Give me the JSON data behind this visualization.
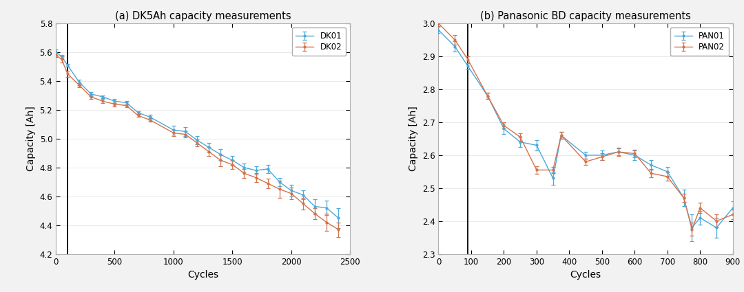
{
  "chart_a": {
    "title": "(a) DK5Ah capacity measurements",
    "xlabel": "Cycles",
    "ylabel": "Capacity [Ah]",
    "xlim": [
      0,
      2500
    ],
    "ylim": [
      4.2,
      5.8
    ],
    "xticks": [
      0,
      500,
      1000,
      1500,
      2000,
      2500
    ],
    "yticks": [
      4.2,
      4.4,
      4.6,
      4.8,
      5.0,
      5.2,
      5.4,
      5.6,
      5.8
    ],
    "vline_x": 100,
    "series": {
      "DK01": {
        "color": "#4CA8D8",
        "x": [
          0,
          50,
          100,
          200,
          300,
          400,
          500,
          600,
          700,
          800,
          1000,
          1100,
          1200,
          1300,
          1400,
          1500,
          1600,
          1700,
          1800,
          1900,
          2000,
          2100,
          2200,
          2300,
          2400
        ],
        "y": [
          5.6,
          5.57,
          5.51,
          5.39,
          5.31,
          5.29,
          5.26,
          5.25,
          5.18,
          5.15,
          5.06,
          5.05,
          4.99,
          4.94,
          4.89,
          4.85,
          4.8,
          4.78,
          4.79,
          4.7,
          4.64,
          4.61,
          4.53,
          4.52,
          4.45
        ],
        "yerr": [
          0.02,
          0.01,
          0.01,
          0.02,
          0.015,
          0.01,
          0.015,
          0.01,
          0.01,
          0.015,
          0.03,
          0.03,
          0.03,
          0.03,
          0.04,
          0.03,
          0.03,
          0.03,
          0.03,
          0.03,
          0.04,
          0.03,
          0.05,
          0.05,
          0.07
        ]
      },
      "DK02": {
        "color": "#D4724A",
        "x": [
          0,
          50,
          100,
          200,
          300,
          400,
          500,
          600,
          700,
          800,
          1000,
          1100,
          1200,
          1300,
          1400,
          1500,
          1600,
          1700,
          1800,
          1900,
          2000,
          2100,
          2200,
          2300,
          2400
        ],
        "y": [
          5.58,
          5.55,
          5.45,
          5.37,
          5.29,
          5.26,
          5.24,
          5.23,
          5.16,
          5.13,
          5.04,
          5.03,
          4.97,
          4.91,
          4.85,
          4.82,
          4.76,
          4.73,
          4.69,
          4.65,
          4.62,
          4.55,
          4.48,
          4.42,
          4.37
        ],
        "yerr": [
          0.015,
          0.02,
          0.02,
          0.015,
          0.015,
          0.015,
          0.015,
          0.01,
          0.01,
          0.01,
          0.02,
          0.02,
          0.025,
          0.03,
          0.04,
          0.03,
          0.03,
          0.03,
          0.035,
          0.06,
          0.04,
          0.04,
          0.04,
          0.06,
          0.05
        ]
      }
    }
  },
  "chart_b": {
    "title": "(b) Panasonic BD capacity measurements",
    "xlabel": "Cycles",
    "ylabel": "Capacity [Ah]",
    "xlim": [
      0,
      900
    ],
    "ylim": [
      2.3,
      3.0
    ],
    "xticks": [
      0,
      100,
      200,
      300,
      400,
      500,
      600,
      700,
      800,
      900
    ],
    "yticks": [
      2.3,
      2.4,
      2.5,
      2.6,
      2.7,
      2.8,
      2.9,
      3.0
    ],
    "vline_x": 90,
    "series": {
      "PAN01": {
        "color": "#4CA8D8",
        "x": [
          0,
          50,
          90,
          150,
          200,
          250,
          300,
          350,
          375,
          450,
          500,
          550,
          600,
          650,
          700,
          750,
          775,
          800,
          850,
          900
        ],
        "y": [
          2.98,
          2.93,
          2.87,
          2.78,
          2.68,
          2.64,
          2.63,
          2.53,
          2.66,
          2.6,
          2.6,
          2.61,
          2.6,
          2.57,
          2.55,
          2.47,
          2.38,
          2.41,
          2.38,
          2.44
        ],
        "yerr": [
          0.01,
          0.015,
          0.01,
          0.01,
          0.015,
          0.015,
          0.015,
          0.02,
          0.01,
          0.01,
          0.015,
          0.01,
          0.015,
          0.015,
          0.015,
          0.025,
          0.04,
          0.02,
          0.03,
          0.02
        ]
      },
      "PAN02": {
        "color": "#D4724A",
        "x": [
          0,
          50,
          90,
          150,
          200,
          250,
          300,
          350,
          375,
          450,
          500,
          550,
          600,
          650,
          700,
          750,
          775,
          800,
          850,
          900
        ],
        "y": [
          3.0,
          2.95,
          2.89,
          2.78,
          2.69,
          2.655,
          2.555,
          2.555,
          2.66,
          2.58,
          2.595,
          2.61,
          2.605,
          2.545,
          2.535,
          2.47,
          2.375,
          2.44,
          2.4,
          2.42
        ],
        "yerr": [
          0.008,
          0.015,
          0.01,
          0.01,
          0.01,
          0.012,
          0.012,
          0.01,
          0.01,
          0.01,
          0.01,
          0.012,
          0.012,
          0.012,
          0.012,
          0.012,
          0.02,
          0.015,
          0.02,
          0.015
        ]
      }
    }
  },
  "figure": {
    "bg_color": "#F2F2F2",
    "axes_bg_color": "#FFFFFF",
    "legend_fontsize": 8.5,
    "tick_fontsize": 8.5,
    "label_fontsize": 10,
    "title_fontsize": 10.5,
    "spine_color": "#b0b0b0"
  }
}
